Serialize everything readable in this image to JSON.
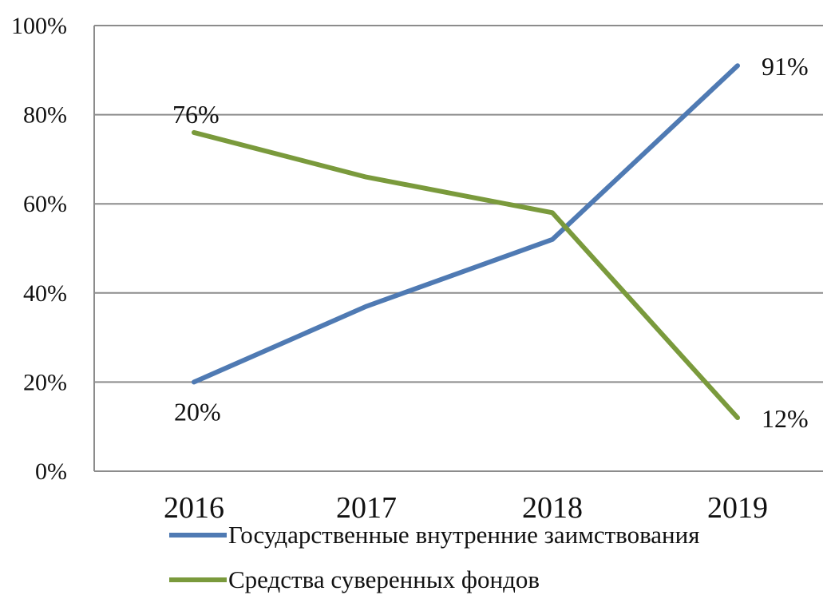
{
  "chart_data": {
    "type": "line",
    "categories": [
      "2016",
      "2017",
      "2018",
      "2019"
    ],
    "ylim": [
      0,
      100
    ],
    "yticks": [
      "0%",
      "20%",
      "40%",
      "60%",
      "80%",
      "100%"
    ],
    "y_unit": "%",
    "grid": true,
    "legend_position": "bottom",
    "series": [
      {
        "name": "Государственные внутренние заимствования",
        "color": "#4f7ab3",
        "values": [
          20,
          37,
          52,
          91
        ],
        "labels": [
          {
            "index": 0,
            "text": "20%",
            "placement": "below"
          },
          {
            "index": 3,
            "text": "91%",
            "placement": "right"
          }
        ]
      },
      {
        "name": "Средства суверенных фондов",
        "color": "#7a9a3c",
        "values": [
          76,
          66,
          58,
          12
        ],
        "labels": [
          {
            "index": 0,
            "text": "76%",
            "placement": "above"
          },
          {
            "index": 3,
            "text": "12%",
            "placement": "right"
          }
        ]
      }
    ]
  }
}
